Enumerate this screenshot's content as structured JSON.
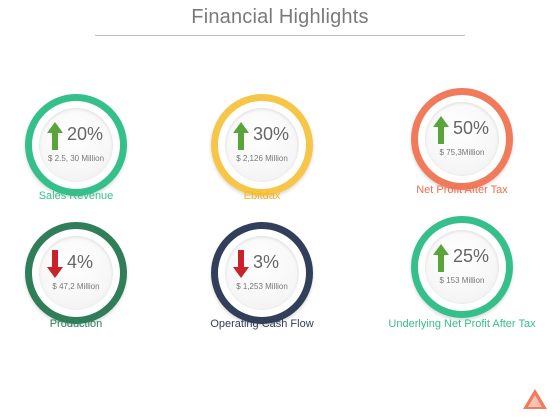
{
  "page": {
    "title": "Financial Highlights"
  },
  "cards": [
    {
      "percent": "20%",
      "amount": "$ 2.5, 30 Million",
      "label": "Sales Revenue",
      "trend": "up",
      "ring_color": "#35bf8a",
      "label_color": "#35bf8a",
      "arrow_color": "#5aa53a"
    },
    {
      "percent": "30%",
      "amount": "$ 2,126 Million",
      "label": "Ebitdax",
      "trend": "up",
      "ring_color": "#f7c548",
      "label_color": "#f2b62a",
      "arrow_color": "#5aa53a"
    },
    {
      "percent": "50%",
      "amount": "$ 75,3Million",
      "label": "Net Profit After Tax",
      "trend": "up",
      "ring_color": "#f07a5a",
      "label_color": "#ef6f4f",
      "arrow_color": "#5aa53a"
    },
    {
      "percent": "4%",
      "amount": "$ 47,2 Million",
      "label": "Production",
      "trend": "down",
      "ring_color": "#2f7d59",
      "label_color": "#2f7d59",
      "arrow_color": "#c9222a"
    },
    {
      "percent": "3%",
      "amount": "$ 1,253 Million",
      "label": "Operating Cash Flow",
      "trend": "down",
      "ring_color": "#323f5a",
      "label_color": "#323f5a",
      "arrow_color": "#c9222a"
    },
    {
      "percent": "25%",
      "amount": "$ 153 Million",
      "label": "Underlying Net Profit After Tax",
      "trend": "up",
      "ring_color": "#35bf8a",
      "label_color": "#35bf8a",
      "arrow_color": "#5aa53a"
    }
  ],
  "icons": {
    "up": "arrow-up-icon",
    "down": "arrow-down-icon",
    "corner": "triangle-icon"
  },
  "corner_color": "#f07a5a"
}
